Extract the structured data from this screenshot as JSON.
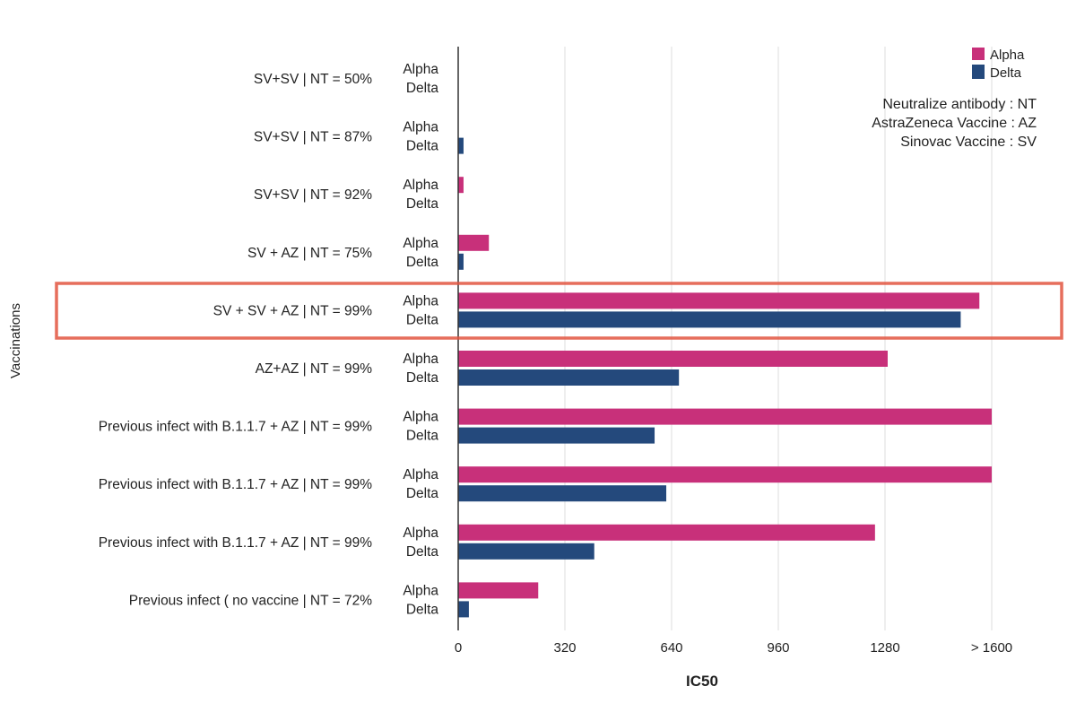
{
  "chart_data": {
    "type": "bar",
    "orientation": "horizontal",
    "title": "",
    "xlabel": "IC50",
    "ylabel": "Vaccinations",
    "xlim": [
      0,
      1600
    ],
    "xticks": [
      "0",
      "320",
      "640",
      "960",
      "1280",
      "> 1600"
    ],
    "grid": true,
    "legend_position": "top-right",
    "categories": [
      "SV+SV | NT =  50%",
      "SV+SV | NT =  87%",
      "SV+SV | NT =  92%",
      "SV + AZ | NT =  75%",
      "SV + SV + AZ | NT =  99%",
      "AZ+AZ | NT =  99%",
      "Previous infect with B.1.1.7 + AZ | NT =  99%",
      "Previous infect with B.1.1.7 + AZ | NT =  99%",
      "Previous infect with B.1.1.7 + AZ | NT =  99%",
      "Previous infect ( no vaccine | NT =  72%"
    ],
    "series": [
      {
        "name": "Alpha",
        "color": "#c8307a",
        "values": [
          0,
          0,
          16,
          92,
          1563,
          1288,
          1600,
          1600,
          1250,
          240
        ]
      },
      {
        "name": "Delta",
        "color": "#24497c",
        "values": [
          0,
          16,
          0,
          16,
          1507,
          662,
          589,
          624,
          408,
          32
        ]
      }
    ],
    "annotations": [
      "Neutralize antibody : NT",
      "AstraZeneca Vaccine : AZ",
      "Sinovac Vaccine : SV"
    ],
    "highlighted_category": "SV + SV + AZ | NT =  99%",
    "highlight_color": "#e2553f"
  }
}
